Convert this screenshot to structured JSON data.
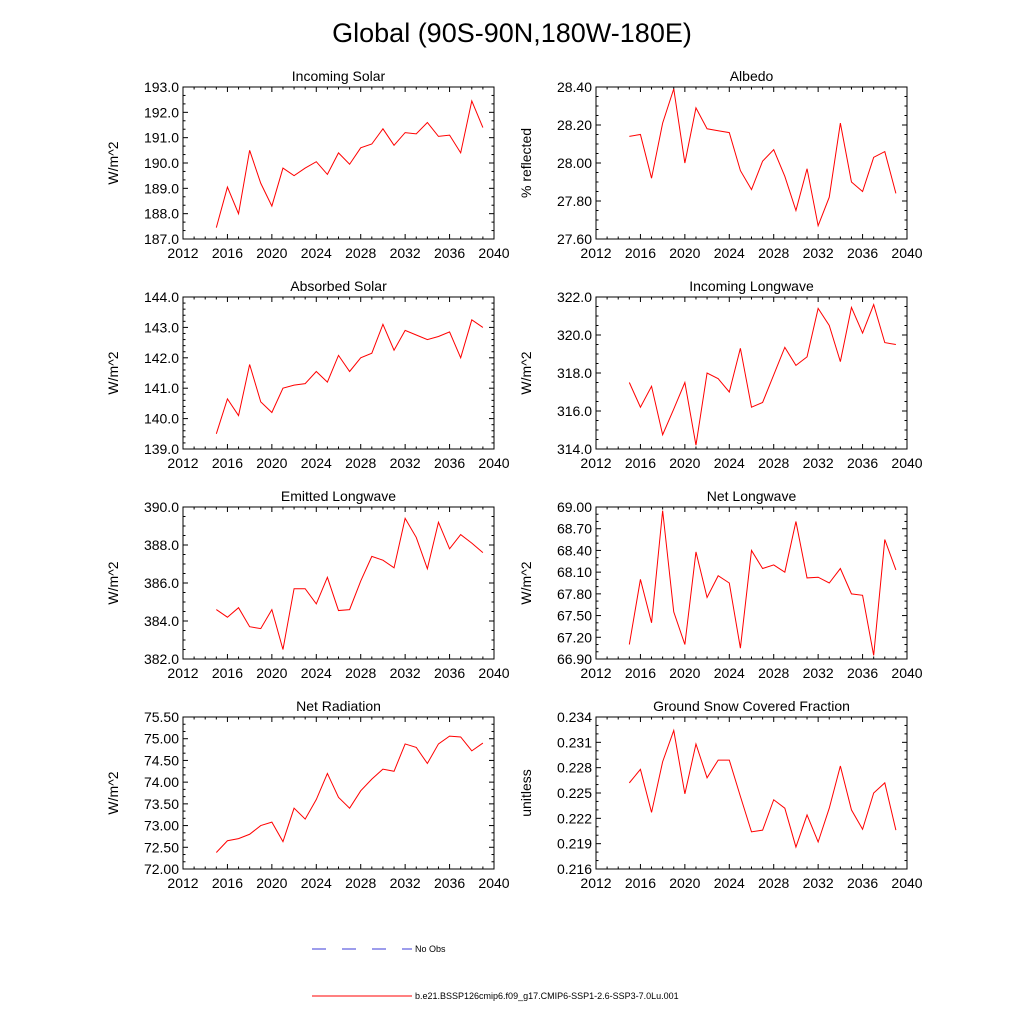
{
  "title": "Global (90S-90N,180W-180E)",
  "colors": {
    "model": "#ff0000",
    "obs": "#3b3bd9",
    "axis": "#000000"
  },
  "legend": {
    "obs_label": "No Obs",
    "model_label": "b.e21.BSSP126cmip6.f09_g17.CMIP6-SSP1-2.6-SSP3-7.0Lu.001"
  },
  "chart_data": [
    {
      "type": "line",
      "title": "Incoming Solar",
      "xlabel": "",
      "ylabel": "W/m^2",
      "xlim": [
        2012,
        2040
      ],
      "ylim": [
        187.0,
        193.0
      ],
      "xticks": [
        "2012",
        "2016",
        "2020",
        "2024",
        "2028",
        "2032",
        "2036",
        "2040"
      ],
      "yticks": [
        "187.0",
        "188.0",
        "189.0",
        "190.0",
        "191.0",
        "192.0",
        "193.0"
      ],
      "x": [
        2015,
        2016,
        2017,
        2018,
        2019,
        2020,
        2021,
        2022,
        2023,
        2024,
        2025,
        2026,
        2027,
        2028,
        2029,
        2030,
        2031,
        2032,
        2033,
        2034,
        2035,
        2036,
        2037,
        2038,
        2039
      ],
      "series": [
        {
          "values": [
            187.45,
            189.05,
            188.0,
            190.5,
            189.2,
            188.3,
            189.8,
            189.5,
            189.8,
            190.05,
            189.55,
            190.4,
            189.95,
            190.6,
            190.75,
            191.35,
            190.7,
            191.2,
            191.15,
            191.6,
            191.05,
            191.1,
            190.4,
            192.45,
            191.4
          ]
        }
      ]
    },
    {
      "type": "line",
      "title": "Albedo",
      "xlabel": "",
      "ylabel": "% reflected",
      "xlim": [
        2012,
        2040
      ],
      "ylim": [
        27.6,
        28.4
      ],
      "xticks": [
        "2012",
        "2016",
        "2020",
        "2024",
        "2028",
        "2032",
        "2036",
        "2040"
      ],
      "yticks": [
        "27.60",
        "27.80",
        "28.00",
        "28.20",
        "28.40"
      ],
      "x": [
        2015,
        2016,
        2017,
        2018,
        2019,
        2020,
        2021,
        2022,
        2023,
        2024,
        2025,
        2026,
        2027,
        2028,
        2029,
        2030,
        2031,
        2032,
        2033,
        2034,
        2035,
        2036,
        2037,
        2038,
        2039
      ],
      "series": [
        {
          "values": [
            28.14,
            28.15,
            27.92,
            28.21,
            28.39,
            28.0,
            28.29,
            28.18,
            28.17,
            28.16,
            27.96,
            27.86,
            28.01,
            28.07,
            27.93,
            27.75,
            27.97,
            27.67,
            27.82,
            28.21,
            27.9,
            27.85,
            28.03,
            28.06,
            27.84
          ]
        }
      ]
    },
    {
      "type": "line",
      "title": "Absorbed Solar",
      "xlabel": "",
      "ylabel": "W/m^2",
      "xlim": [
        2012,
        2040
      ],
      "ylim": [
        139.0,
        144.0
      ],
      "xticks": [
        "2012",
        "2016",
        "2020",
        "2024",
        "2028",
        "2032",
        "2036",
        "2040"
      ],
      "yticks": [
        "139.0",
        "140.0",
        "141.0",
        "142.0",
        "143.0",
        "144.0"
      ],
      "x": [
        2015,
        2016,
        2017,
        2018,
        2019,
        2020,
        2021,
        2022,
        2023,
        2024,
        2025,
        2026,
        2027,
        2028,
        2029,
        2030,
        2031,
        2032,
        2033,
        2034,
        2035,
        2036,
        2037,
        2038,
        2039
      ],
      "series": [
        {
          "values": [
            139.5,
            140.65,
            140.1,
            141.78,
            140.55,
            140.2,
            141.0,
            141.1,
            141.15,
            141.55,
            141.2,
            142.08,
            141.55,
            142.0,
            142.15,
            143.1,
            142.25,
            142.9,
            142.75,
            142.6,
            142.7,
            142.85,
            142.0,
            143.25,
            143.0
          ]
        }
      ]
    },
    {
      "type": "line",
      "title": "Incoming Longwave",
      "xlabel": "",
      "ylabel": "W/m^2",
      "xlim": [
        2012,
        2040
      ],
      "ylim": [
        314.0,
        322.0
      ],
      "xticks": [
        "2012",
        "2016",
        "2020",
        "2024",
        "2028",
        "2032",
        "2036",
        "2040"
      ],
      "yticks": [
        "314.0",
        "316.0",
        "318.0",
        "320.0",
        "322.0"
      ],
      "x": [
        2015,
        2016,
        2017,
        2018,
        2019,
        2020,
        2021,
        2022,
        2023,
        2024,
        2025,
        2026,
        2027,
        2028,
        2029,
        2030,
        2031,
        2032,
        2033,
        2034,
        2035,
        2036,
        2037,
        2038,
        2039
      ],
      "series": [
        {
          "values": [
            317.5,
            316.2,
            317.3,
            314.75,
            316.1,
            317.5,
            314.2,
            318.0,
            317.7,
            317.0,
            319.3,
            316.2,
            316.45,
            317.9,
            319.35,
            318.4,
            318.85,
            321.4,
            320.5,
            318.6,
            321.45,
            320.1,
            321.6,
            319.6,
            319.5
          ]
        }
      ]
    },
    {
      "type": "line",
      "title": "Emitted Longwave",
      "xlabel": "",
      "ylabel": "W/m^2",
      "xlim": [
        2012,
        2040
      ],
      "ylim": [
        382.0,
        390.0
      ],
      "xticks": [
        "2012",
        "2016",
        "2020",
        "2024",
        "2028",
        "2032",
        "2036",
        "2040"
      ],
      "yticks": [
        "382.0",
        "384.0",
        "386.0",
        "388.0",
        "390.0"
      ],
      "x": [
        2015,
        2016,
        2017,
        2018,
        2019,
        2020,
        2021,
        2022,
        2023,
        2024,
        2025,
        2026,
        2027,
        2028,
        2029,
        2030,
        2031,
        2032,
        2033,
        2034,
        2035,
        2036,
        2037,
        2038,
        2039
      ],
      "series": [
        {
          "values": [
            384.6,
            384.2,
            384.7,
            383.7,
            383.6,
            384.6,
            382.5,
            385.7,
            385.7,
            384.9,
            386.3,
            384.55,
            384.6,
            386.1,
            387.4,
            387.2,
            386.8,
            389.4,
            388.4,
            386.75,
            389.2,
            387.8,
            388.55,
            388.1,
            387.6
          ]
        }
      ]
    },
    {
      "type": "line",
      "title": "Net Longwave",
      "xlabel": "",
      "ylabel": "W/m^2",
      "xlim": [
        2012,
        2040
      ],
      "ylim": [
        66.9,
        69.0
      ],
      "xticks": [
        "2012",
        "2016",
        "2020",
        "2024",
        "2028",
        "2032",
        "2036",
        "2040"
      ],
      "yticks": [
        "66.90",
        "67.20",
        "67.50",
        "67.80",
        "68.10",
        "68.40",
        "68.70",
        "69.00"
      ],
      "x": [
        2015,
        2016,
        2017,
        2018,
        2019,
        2020,
        2021,
        2022,
        2023,
        2024,
        2025,
        2026,
        2027,
        2028,
        2029,
        2030,
        2031,
        2032,
        2033,
        2034,
        2035,
        2036,
        2037,
        2038,
        2039
      ],
      "series": [
        {
          "values": [
            67.1,
            68.0,
            67.4,
            68.95,
            67.55,
            67.1,
            68.38,
            67.75,
            68.05,
            67.95,
            67.05,
            68.4,
            68.15,
            68.2,
            68.1,
            68.8,
            68.02,
            68.03,
            67.95,
            68.15,
            67.8,
            67.78,
            66.95,
            68.55,
            68.13
          ]
        }
      ]
    },
    {
      "type": "line",
      "title": "Net Radiation",
      "xlabel": "",
      "ylabel": "W/m^2",
      "xlim": [
        2012,
        2040
      ],
      "ylim": [
        72.0,
        75.5
      ],
      "xticks": [
        "2012",
        "2016",
        "2020",
        "2024",
        "2028",
        "2032",
        "2036",
        "2040"
      ],
      "yticks": [
        "72.00",
        "72.50",
        "73.00",
        "73.50",
        "74.00",
        "74.50",
        "75.00",
        "75.50"
      ],
      "x": [
        2015,
        2016,
        2017,
        2018,
        2019,
        2020,
        2021,
        2022,
        2023,
        2024,
        2025,
        2026,
        2027,
        2028,
        2029,
        2030,
        2031,
        2032,
        2033,
        2034,
        2035,
        2036,
        2037,
        2038,
        2039
      ],
      "series": [
        {
          "values": [
            72.38,
            72.65,
            72.7,
            72.8,
            73.0,
            73.08,
            72.63,
            73.4,
            73.15,
            73.6,
            74.2,
            73.65,
            73.4,
            73.8,
            74.07,
            74.3,
            74.25,
            74.88,
            74.8,
            74.43,
            74.88,
            75.06,
            75.04,
            74.72,
            74.9
          ]
        }
      ]
    },
    {
      "type": "line",
      "title": "Ground Snow Covered Fraction",
      "xlabel": "",
      "ylabel": "unitless",
      "xlim": [
        2012,
        2040
      ],
      "ylim": [
        0.216,
        0.234
      ],
      "xticks": [
        "2012",
        "2016",
        "2020",
        "2024",
        "2028",
        "2032",
        "2036",
        "2040"
      ],
      "yticks": [
        "0.216",
        "0.219",
        "0.222",
        "0.225",
        "0.228",
        "0.231",
        "0.234"
      ],
      "x": [
        2015,
        2016,
        2017,
        2018,
        2019,
        2020,
        2021,
        2022,
        2023,
        2024,
        2025,
        2026,
        2027,
        2028,
        2029,
        2030,
        2031,
        2032,
        2033,
        2034,
        2035,
        2036,
        2037,
        2038,
        2039
      ],
      "series": [
        {
          "values": [
            0.2262,
            0.2278,
            0.2227,
            0.2287,
            0.2324,
            0.2249,
            0.2308,
            0.2268,
            0.2289,
            0.2289,
            0.2246,
            0.2204,
            0.2206,
            0.2242,
            0.2232,
            0.2186,
            0.2224,
            0.2192,
            0.2232,
            0.2282,
            0.223,
            0.2207,
            0.225,
            0.2262,
            0.2206
          ]
        }
      ]
    }
  ]
}
